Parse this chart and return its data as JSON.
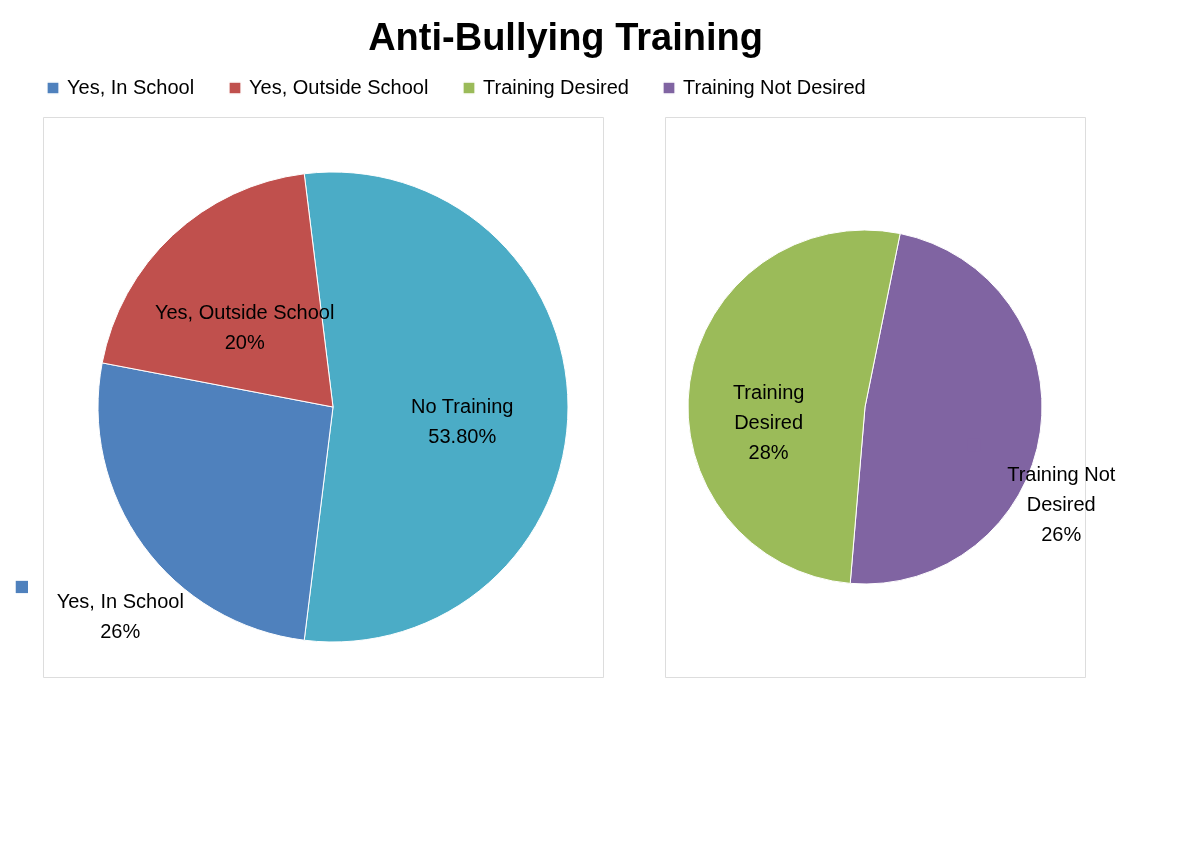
{
  "chart_data": [
    {
      "type": "pie",
      "title": "Anti-Bullying Training",
      "categories": [
        "Yes, In School",
        "Yes, Outside School",
        "No Training"
      ],
      "values": [
        26,
        20,
        53.8
      ],
      "colors": [
        "#4f81bd",
        "#c0504d",
        "#4bacc6"
      ],
      "value_labels": [
        "26%",
        "20%",
        "53.80%"
      ],
      "legend": "top"
    },
    {
      "type": "pie",
      "categories": [
        "Training Desired",
        "Training Not Desired"
      ],
      "values": [
        28,
        26
      ],
      "colors": [
        "#9bbb59",
        "#8064a2"
      ],
      "value_labels": [
        "28%",
        "26%"
      ],
      "legend": "top"
    }
  ]
}
